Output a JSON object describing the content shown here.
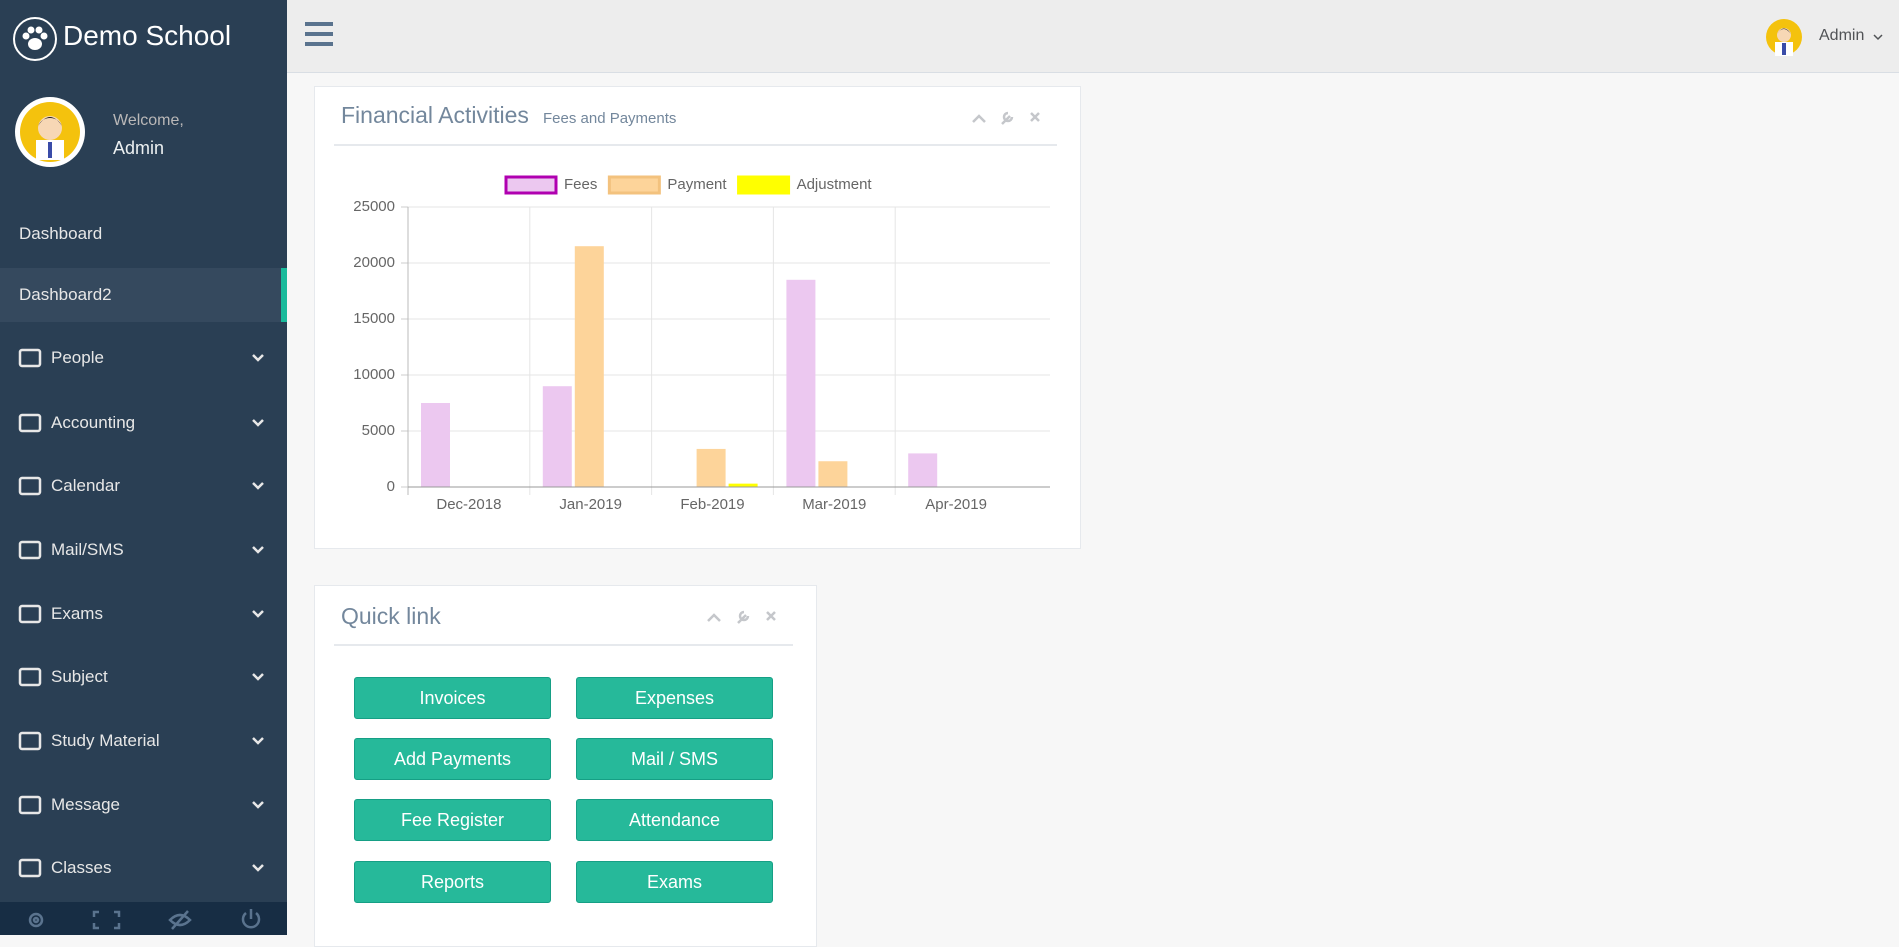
{
  "brand": "Demo School",
  "profile": {
    "greeting": "Welcome,",
    "name": "Admin"
  },
  "header": {
    "user": "Admin"
  },
  "menu": [
    {
      "label": "Dashboard",
      "has_submenu": false,
      "active": false
    },
    {
      "label": "Dashboard2",
      "has_submenu": false,
      "active": true
    },
    {
      "label": "People",
      "has_submenu": true,
      "active": false
    },
    {
      "label": "Accounting",
      "has_submenu": true,
      "active": false
    },
    {
      "label": "Calendar",
      "has_submenu": true,
      "active": false
    },
    {
      "label": "Mail/SMS",
      "has_submenu": true,
      "active": false
    },
    {
      "label": "Exams",
      "has_submenu": true,
      "active": false
    },
    {
      "label": "Subject",
      "has_submenu": true,
      "active": false
    },
    {
      "label": "Study Material",
      "has_submenu": true,
      "active": false
    },
    {
      "label": "Message",
      "has_submenu": true,
      "active": false
    },
    {
      "label": "Classes",
      "has_submenu": true,
      "active": false
    }
  ],
  "chart_data": {
    "type": "bar",
    "title": "Financial Activities",
    "subtitle": "Fees and Payments",
    "categories": [
      "Dec-2018",
      "Jan-2019",
      "Feb-2019",
      "Mar-2019",
      "Apr-2019"
    ],
    "series": [
      {
        "name": "Fees",
        "color": "#ecc8f0",
        "border_color": "#b000b0",
        "values": [
          7500,
          9000,
          0,
          18500,
          3000
        ]
      },
      {
        "name": "Payment",
        "color": "#fdd49a",
        "border_color": "#f3c27e",
        "values": [
          0,
          21500,
          3400,
          2300,
          0
        ]
      },
      {
        "name": "Adjustment",
        "color": "#ffff00",
        "border_color": "#ffff00",
        "values": [
          0,
          0,
          300,
          0,
          0
        ]
      }
    ],
    "ylim": [
      0,
      25000
    ],
    "yticks": [
      0,
      5000,
      10000,
      15000,
      20000,
      25000
    ],
    "grid": true,
    "legend": "top"
  },
  "quick_link": {
    "title": "Quick link",
    "buttons": [
      "Invoices",
      "Expenses",
      "Add Payments",
      "Mail / SMS",
      "Fee Register",
      "Attendance",
      "Reports",
      "Exams"
    ]
  }
}
